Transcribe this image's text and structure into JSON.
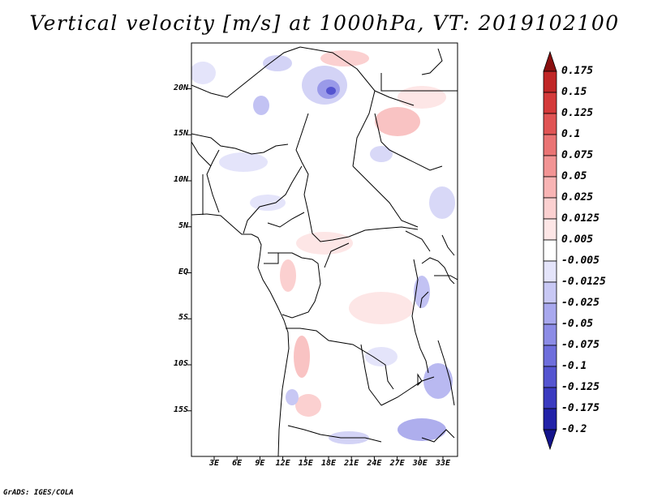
{
  "title": "Vertical velocity [m/s] at 1000hPa, VT: 2019102100",
  "credit": "GrADS: IGES/COLA",
  "map": {
    "region": "Central Africa",
    "lat_labels": [
      {
        "value": 20,
        "text": "20N"
      },
      {
        "value": 15,
        "text": "15N"
      },
      {
        "value": 10,
        "text": "10N"
      },
      {
        "value": 5,
        "text": "5N"
      },
      {
        "value": 0,
        "text": "EQ"
      },
      {
        "value": -5,
        "text": "5S"
      },
      {
        "value": -10,
        "text": "10S"
      },
      {
        "value": -15,
        "text": "15S"
      }
    ],
    "lon_labels": [
      {
        "value": 3,
        "text": "3E"
      },
      {
        "value": 6,
        "text": "6E"
      },
      {
        "value": 9,
        "text": "9E"
      },
      {
        "value": 12,
        "text": "12E"
      },
      {
        "value": 15,
        "text": "15E"
      },
      {
        "value": 18,
        "text": "18E"
      },
      {
        "value": 21,
        "text": "21E"
      },
      {
        "value": 24,
        "text": "24E"
      },
      {
        "value": 27,
        "text": "27E"
      },
      {
        "value": 30,
        "text": "30E"
      },
      {
        "value": 33,
        "text": "33E"
      }
    ]
  },
  "colorbar": {
    "levels": [
      {
        "label": "0.175",
        "color": "#a01616"
      },
      {
        "label": "0.15",
        "color": "#c02626"
      },
      {
        "label": "0.125",
        "color": "#d43a3a"
      },
      {
        "label": "0.1",
        "color": "#e05454"
      },
      {
        "label": "0.075",
        "color": "#ea7474"
      },
      {
        "label": "0.05",
        "color": "#f29494"
      },
      {
        "label": "0.025",
        "color": "#f8b4b4"
      },
      {
        "label": "0.0125",
        "color": "#fbd0d0"
      },
      {
        "label": "0.005",
        "color": "#fde6e6"
      },
      {
        "label": "-0.005",
        "color": "#ffffff"
      },
      {
        "label": "-0.0125",
        "color": "#e4e4fa"
      },
      {
        "label": "-0.025",
        "color": "#c8c8f4"
      },
      {
        "label": "-0.05",
        "color": "#a8a8ee"
      },
      {
        "label": "-0.075",
        "color": "#8c8ce6"
      },
      {
        "label": "-0.1",
        "color": "#6e6edc"
      },
      {
        "label": "-0.125",
        "color": "#5454d0"
      },
      {
        "label": "-0.175",
        "color": "#3a3ac0"
      },
      {
        "label": "-0.2",
        "color": "#2222a8"
      }
    ],
    "top_color": "#8a1010",
    "bottom_color": "#14148c"
  }
}
